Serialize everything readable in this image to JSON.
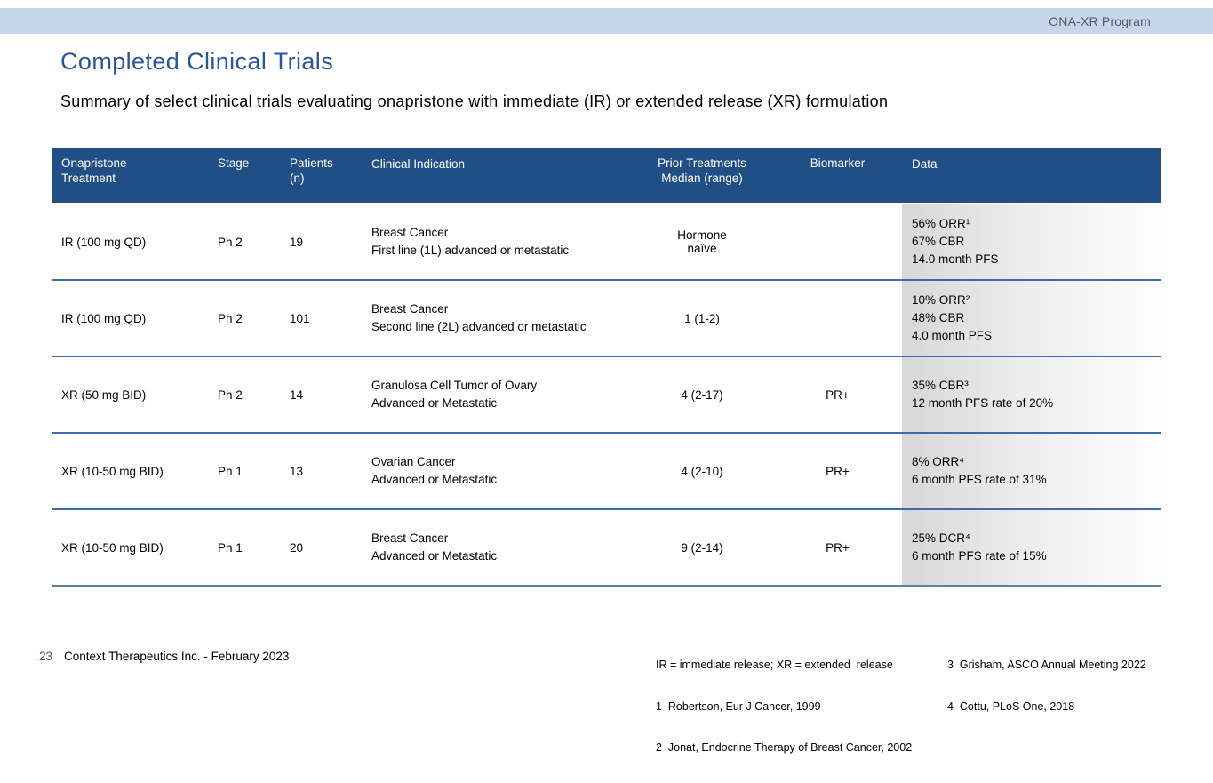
{
  "colors": {
    "accent_blue": "#2a5596",
    "header_bg": "#214f85",
    "topbar_bg": "#c7d6ea",
    "topbar_text": "#55585e",
    "separator": "#3d6cab",
    "last_separator": "#5e809f",
    "gradient_from": "#d7d7d7",
    "gradient_to": "#fdfdfd"
  },
  "top_bar": {
    "program_label": "ONA-XR Program"
  },
  "header": {
    "title": "Completed Clinical Trials",
    "subtitle": "Summary of select clinical trials evaluating onapristone with immediate (IR) or extended release (XR) formulation"
  },
  "table": {
    "columns": {
      "treatment": [
        "Onapristone",
        "Treatment"
      ],
      "stage": "Stage",
      "patients": [
        "Patients",
        "(n)"
      ],
      "indication": "Clinical Indication",
      "prior": [
        "Prior Treatments",
        "Median (range)"
      ],
      "biomarker": "Biomarker",
      "data": "Data"
    },
    "rows": [
      {
        "treatment": "IR (100 mg QD)",
        "stage": "Ph 2",
        "patients": "19",
        "indication": [
          "Breast Cancer",
          "First line (1L) advanced or metastatic"
        ],
        "prior": [
          "Hormone",
          "naïve"
        ],
        "biomarker": "",
        "data": [
          "56% ORR¹",
          "67% CBR",
          "14.0 month PFS"
        ]
      },
      {
        "treatment": "IR (100 mg QD)",
        "stage": "Ph 2",
        "patients": "101",
        "indication": [
          "Breast Cancer",
          "Second line (2L) advanced or metastatic"
        ],
        "prior": [
          "1 (1-2)"
        ],
        "biomarker": "",
        "data": [
          "10% ORR²",
          "48% CBR",
          "4.0 month PFS"
        ]
      },
      {
        "treatment": "XR (50 mg BID)",
        "stage": "Ph 2",
        "patients": "14",
        "indication": [
          "Granulosa Cell Tumor of Ovary",
          "Advanced or Metastatic"
        ],
        "prior": [
          "4 (2-17)"
        ],
        "biomarker": "PR+",
        "data": [
          "35% CBR³",
          "12 month PFS rate of 20%"
        ]
      },
      {
        "treatment": "XR (10-50 mg BID)",
        "stage": "Ph 1",
        "patients": "13",
        "indication": [
          "Ovarian Cancer",
          "Advanced or Metastatic"
        ],
        "prior": [
          "4 (2-10)"
        ],
        "biomarker": "PR+",
        "data": [
          "8% ORR⁴",
          "6 month PFS rate of 31%"
        ]
      },
      {
        "treatment": "XR (10-50 mg BID)",
        "stage": "Ph 1",
        "patients": "20",
        "indication": [
          "Breast Cancer",
          "Advanced or Metastatic"
        ],
        "prior": [
          "9 (2-14)"
        ],
        "biomarker": "PR+",
        "data": [
          "25% DCR⁴",
          "6 month PFS rate of 15%"
        ]
      }
    ]
  },
  "footnotes": {
    "left": [
      "IR = immediate release; XR = extended  release",
      "1  Robertson, Eur J Cancer, 1999",
      "2  Jonat, Endocrine Therapy of Breast Cancer, 2002"
    ],
    "right": [
      "3  Grisham, ASCO Annual Meeting 2022",
      "4  Cottu, PLoS One, 2018"
    ]
  },
  "footer": {
    "page_number": "23",
    "company_date": "Context Therapeutics Inc. - February 2023"
  }
}
